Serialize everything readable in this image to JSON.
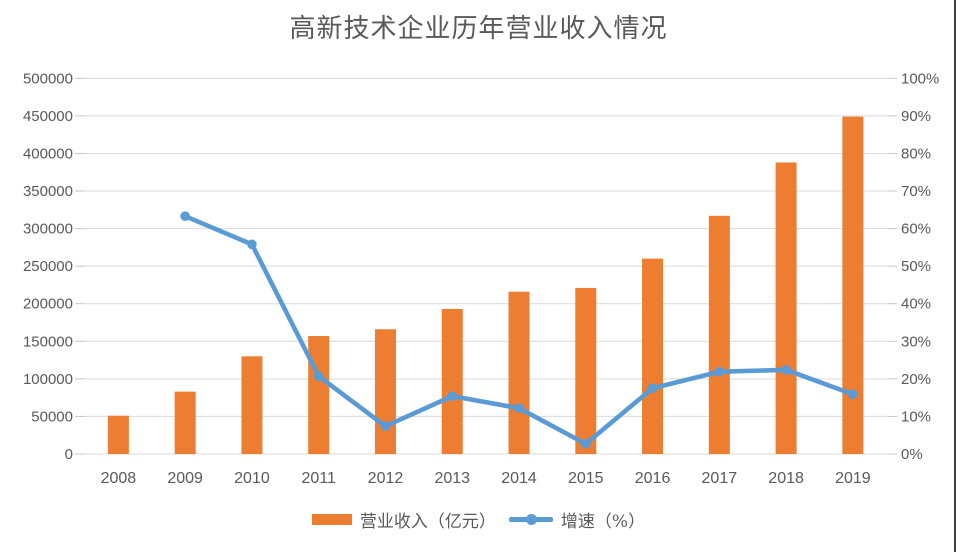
{
  "title": "高新技术企业历年营业收入情况",
  "colors": {
    "bar": "#ED7D31",
    "line": "#5B9BD5",
    "grid": "#D9D9D9",
    "tick": "#C6C6C6",
    "text": "#595959",
    "page_border": "#3F3F3F",
    "background": "#FFFFFF"
  },
  "legend": {
    "items": [
      {
        "label": "营业收入（亿元）",
        "swatch": "bar-swatch"
      },
      {
        "label": "增速（%）",
        "swatch": "line-swatch"
      }
    ]
  },
  "chart_data": {
    "type": "bar",
    "subtype": "bar+line-combo",
    "title": "高新技术企业历年营业收入情况",
    "categories": [
      "2008",
      "2009",
      "2010",
      "2011",
      "2012",
      "2013",
      "2014",
      "2015",
      "2016",
      "2017",
      "2018",
      "2019"
    ],
    "series": [
      {
        "name": "营业收入（亿元）",
        "type": "bar",
        "axis": "left",
        "color": "#ED7D31",
        "values": [
          51000,
          83000,
          130000,
          157000,
          166000,
          193000,
          216000,
          221000,
          260000,
          317000,
          388000,
          449000
        ]
      },
      {
        "name": "增速（%）",
        "type": "line",
        "axis": "right",
        "color": "#5B9BD5",
        "marker": "circle",
        "values": [
          null,
          63.3,
          55.8,
          20.7,
          7.4,
          15.4,
          12.2,
          2.7,
          17.5,
          21.9,
          22.4,
          15.9
        ]
      }
    ],
    "left_axis": {
      "min": 0,
      "max": 500000,
      "step": 50000,
      "tick_labels": [
        "0",
        "50000",
        "100000",
        "150000",
        "200000",
        "250000",
        "300000",
        "350000",
        "400000",
        "450000",
        "500000"
      ]
    },
    "right_axis": {
      "min": 0,
      "max": 100,
      "step": 10,
      "tick_labels": [
        "0%",
        "10%",
        "20%",
        "30%",
        "40%",
        "50%",
        "60%",
        "70%",
        "80%",
        "90%",
        "100%"
      ]
    },
    "grid": true,
    "legend_position": "bottom",
    "xlabel": "",
    "ylabel": ""
  }
}
